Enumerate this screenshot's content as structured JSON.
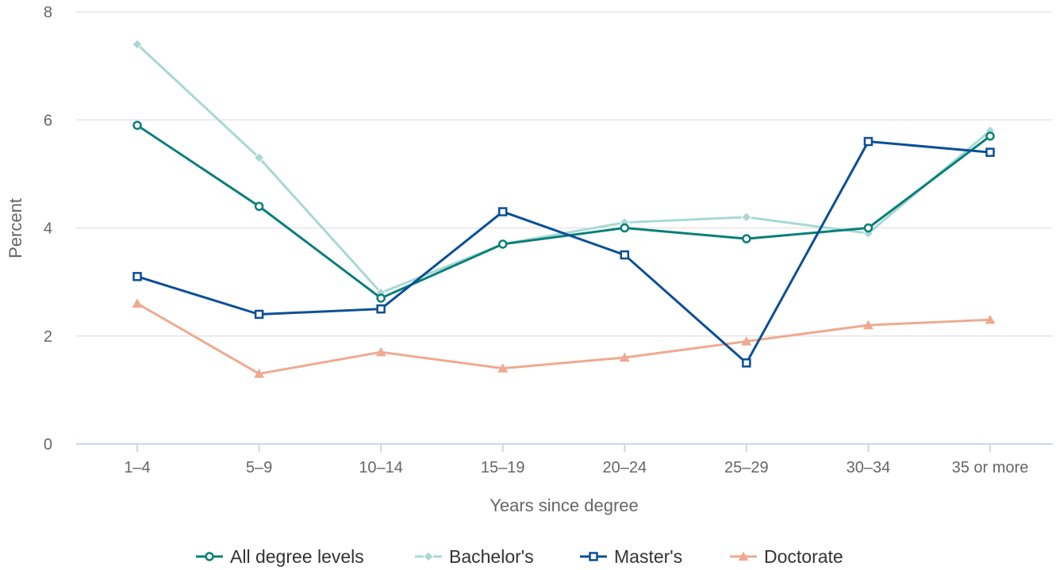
{
  "chart_data": {
    "type": "line",
    "title": "",
    "xlabel": "Years since degree",
    "ylabel": "Percent",
    "categories": [
      "1–4",
      "5–9",
      "10–14",
      "15–19",
      "20–24",
      "25–29",
      "30–34",
      "35 or more"
    ],
    "ylim": [
      0,
      8
    ],
    "yticks": [
      0,
      2,
      4,
      6,
      8
    ],
    "grid": true,
    "legend_position": "bottom",
    "series": [
      {
        "name": "All degree levels",
        "color": "#0a7f7a",
        "marker": "circle",
        "values": [
          5.9,
          4.4,
          2.7,
          3.7,
          4.0,
          3.8,
          4.0,
          5.7
        ]
      },
      {
        "name": "Bachelor's",
        "color": "#a8d8d4",
        "marker": "diamond",
        "values": [
          7.4,
          5.3,
          2.8,
          3.7,
          4.1,
          4.2,
          3.9,
          5.8
        ]
      },
      {
        "name": "Master's",
        "color": "#0b4f96",
        "marker": "square",
        "values": [
          3.1,
          2.4,
          2.5,
          4.3,
          3.5,
          1.5,
          5.6,
          5.4
        ]
      },
      {
        "name": "Doctorate",
        "color": "#eeaa90",
        "marker": "triangle",
        "values": [
          2.6,
          1.3,
          1.7,
          1.4,
          1.6,
          1.9,
          2.2,
          2.3
        ]
      }
    ]
  }
}
